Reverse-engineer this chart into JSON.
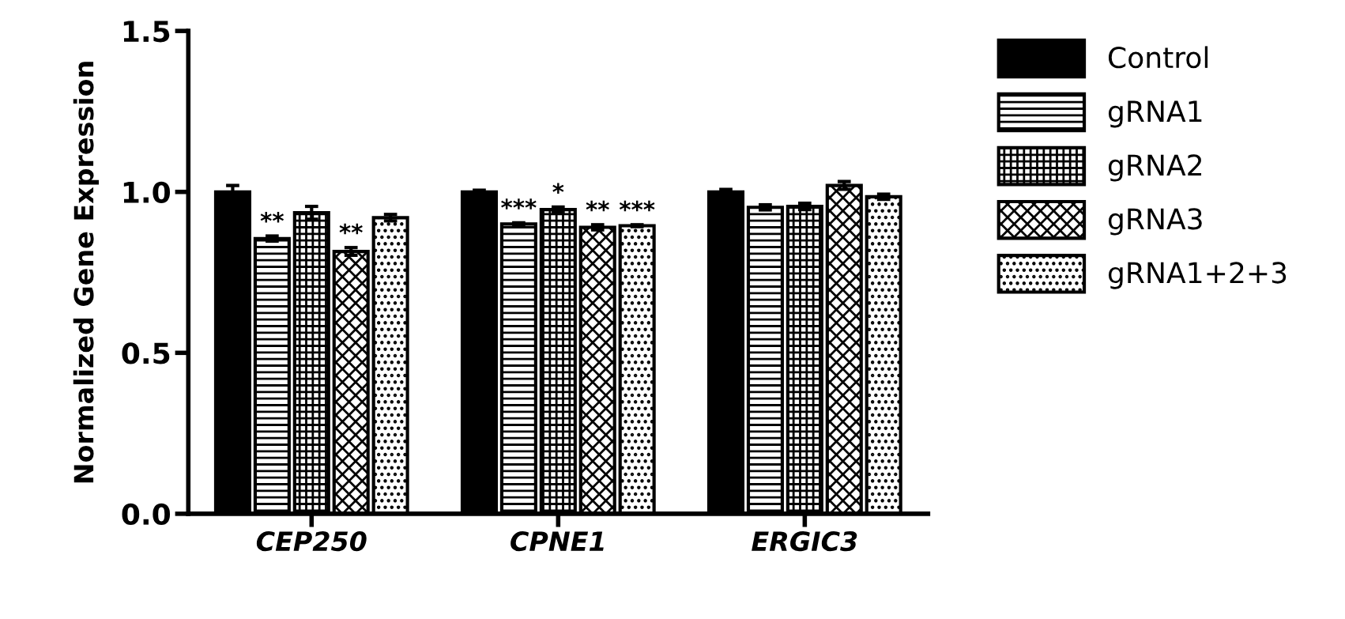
{
  "chart_data": {
    "type": "bar",
    "ylabel": "Normalized Gene Expression",
    "categories": [
      "CEP250",
      "CPNE1",
      "ERGIC3"
    ],
    "series": [
      {
        "name": "Control",
        "color": "#000000",
        "values": [
          1.0,
          1.0,
          1.0
        ],
        "errors": [
          0.02,
          0.005,
          0.008
        ]
      },
      {
        "name": "gRNA1",
        "color": "#000000",
        "values": [
          0.855,
          0.9,
          0.952
        ],
        "errors": [
          0.008,
          0.004,
          0.008
        ],
        "value_labels": [
          "**",
          "***",
          null
        ]
      },
      {
        "name": "gRNA2",
        "color": "#000000",
        "values": [
          0.935,
          0.945,
          0.955
        ],
        "errors": [
          0.02,
          0.008,
          0.01
        ],
        "value_labels": [
          null,
          "*",
          null
        ]
      },
      {
        "name": "gRNA3",
        "color": "#000000",
        "values": [
          0.815,
          0.89,
          1.02
        ],
        "errors": [
          0.012,
          0.008,
          0.012
        ],
        "value_labels": [
          "**",
          "**",
          null
        ]
      },
      {
        "name": "gRNA1+2+3",
        "color": "#000000",
        "values": [
          0.92,
          0.895,
          0.985
        ],
        "errors": [
          0.01,
          0.003,
          0.008
        ],
        "value_labels": [
          null,
          "***",
          null
        ]
      }
    ],
    "ylim": [
      0,
      1.5
    ],
    "yticks": [
      {
        "value": 0,
        "label": "0.0"
      },
      {
        "value": 0.5,
        "label": "0.5"
      },
      {
        "value": 1.0,
        "label": "1.0"
      },
      {
        "value": 1.5,
        "label": "1.5"
      }
    ],
    "grid": false,
    "legend": "right"
  }
}
